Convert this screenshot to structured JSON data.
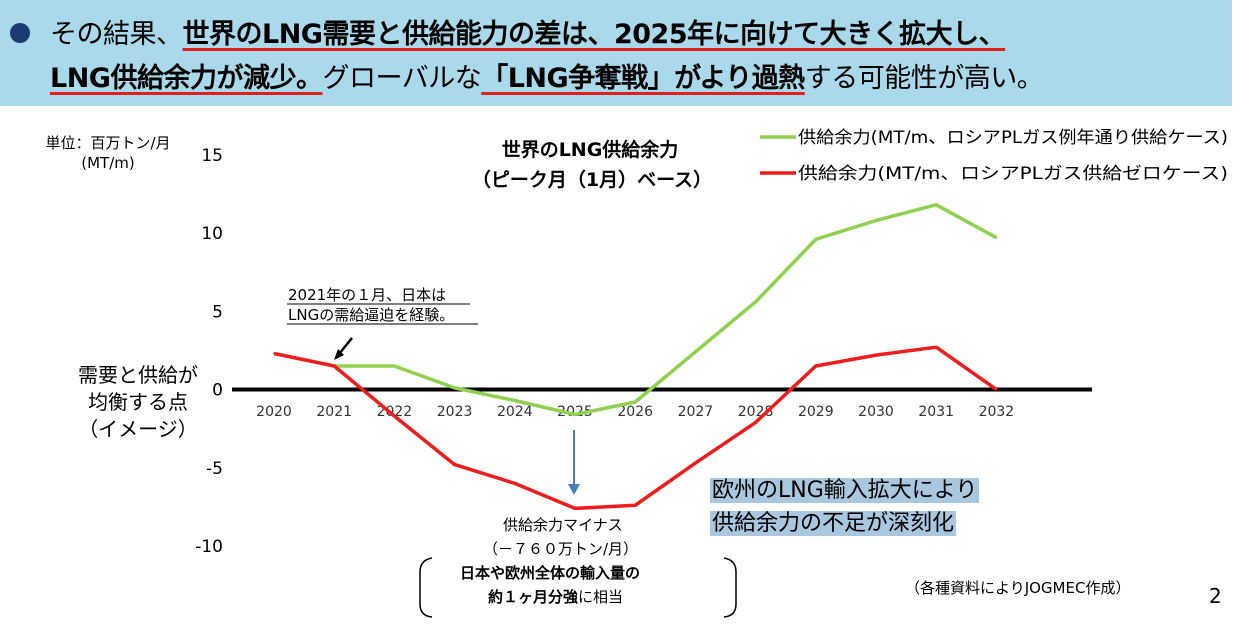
{
  "banner": {
    "seg1": "その結果、",
    "seg2": "世界のLNG需要と供給能力の差は、2025年に向けて大きく拡大し、",
    "seg3": "LNG供給余力が減少。",
    "seg4": "グローバルな",
    "seg5": "「LNG争奪戦」がより過熱",
    "seg6": "する可能性が高い。"
  },
  "unit_label": "単位：百万トン/月",
  "unit_label2": "(MT/m)",
  "balance_label": [
    "需要と供給が",
    "均衡する点",
    "（イメージ）"
  ],
  "annotation_2021": [
    "2021年の１月、日本は",
    "LNGの需給逼迫を経験。"
  ],
  "minus_annotation": {
    "line1": "供給余力マイナス",
    "line2": "（－７６０万トン/月）",
    "bold1": "日本や欧州全体の輸入量の",
    "bold2": "約１ヶ月分強",
    "tail2": "に相当"
  },
  "europe_note": [
    "欧州のLNG輸入拡大により",
    "供給余力の不足が深刻化"
  ],
  "source_note": "（各種資料によりJOGMEC作成）",
  "page_number": "2",
  "colors": {
    "green": "#92d050",
    "red": "#ee1c1c",
    "banner": "#a9d9ea",
    "highlight": "#a9c7df"
  },
  "chart_data": {
    "type": "line",
    "title": "世界のLNG供給余力",
    "subtitle": "（ピーク月（1月）ベース）",
    "xlabel": "",
    "ylabel": "単位：百万トン/月 (MT/m)",
    "ylim": [
      -10,
      15
    ],
    "yticks": [
      15,
      10,
      5,
      0,
      -5,
      -10
    ],
    "categories": [
      "2020",
      "2021",
      "2022",
      "2023",
      "2024",
      "2025",
      "2026",
      "2027",
      "2028",
      "2029",
      "2030",
      "2031",
      "2032"
    ],
    "series": [
      {
        "name": "供給余力(MT/m、ロシアPLガス例年通り供給ケース)",
        "color": "#92d050",
        "values": [
          null,
          1.5,
          1.5,
          0.1,
          -0.7,
          -1.6,
          -0.8,
          2.4,
          5.6,
          9.6,
          10.8,
          11.8,
          9.7
        ]
      },
      {
        "name": "供給余力(MT/m、ロシアPLガス供給ゼロケース)",
        "color": "#ee1c1c",
        "values": [
          2.3,
          1.5,
          -1.7,
          -4.8,
          -6.0,
          -7.6,
          -7.4,
          -4.7,
          -2.1,
          1.5,
          2.2,
          2.7,
          0.0
        ]
      }
    ],
    "grid": false,
    "legend": "top-right"
  }
}
